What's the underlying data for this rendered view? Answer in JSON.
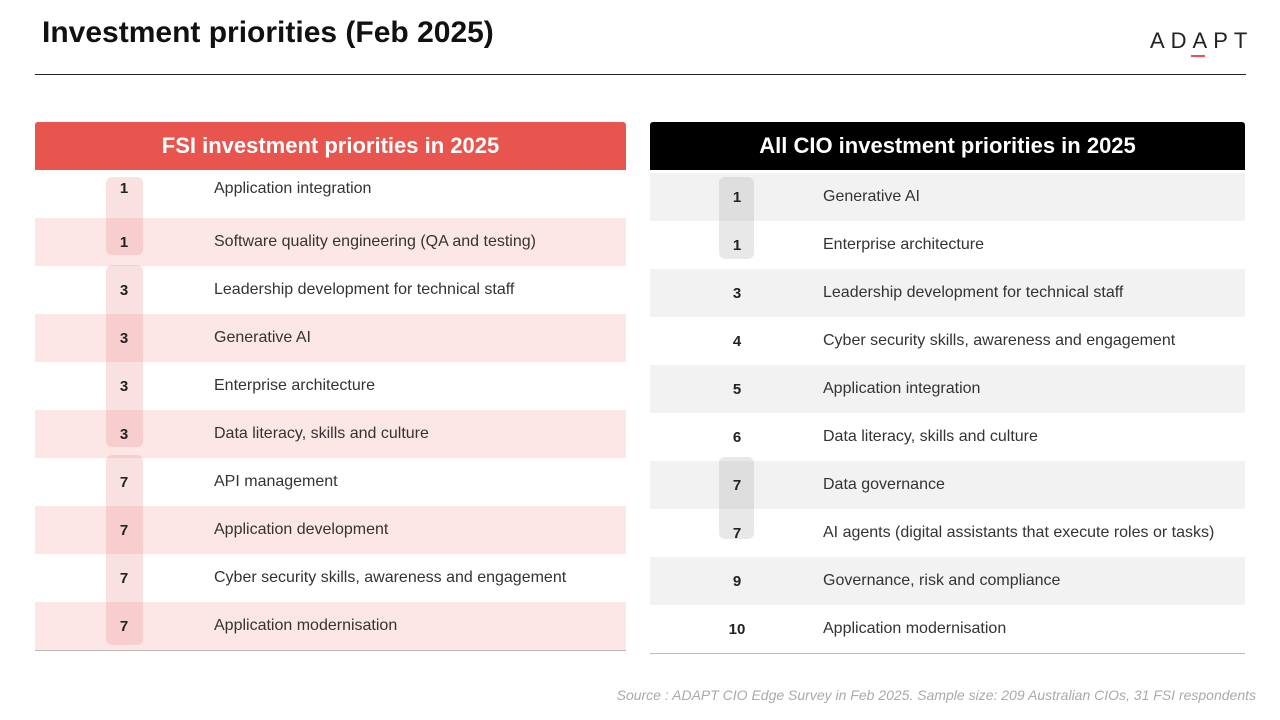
{
  "page": {
    "title": "Investment priorities (Feb 2025)",
    "logo": "ADAPT",
    "source": "Source : ADAPT CIO Edge Survey in Feb 2025. Sample size: 209 Australian CIOs, 31 FSI respondents"
  },
  "colors": {
    "fsi_header": "#e8554e",
    "cio_header": "#000000",
    "fsi_row": "#fde6e6",
    "cio_row": "#f2f2f2"
  },
  "fsi": {
    "heading": "FSI investment priorities in 2025",
    "rows": [
      {
        "rank": "1",
        "label": "Application integration"
      },
      {
        "rank": "1",
        "label": "Software quality engineering (QA and testing)"
      },
      {
        "rank": "3",
        "label": "Leadership development for technical staff"
      },
      {
        "rank": "3",
        "label": "Generative AI"
      },
      {
        "rank": "3",
        "label": "Enterprise architecture"
      },
      {
        "rank": "3",
        "label": "Data literacy, skills and culture"
      },
      {
        "rank": "7",
        "label": "API management"
      },
      {
        "rank": "7",
        "label": "Application development"
      },
      {
        "rank": "7",
        "label": "Cyber security skills, awareness and engagement"
      },
      {
        "rank": "7",
        "label": "Application modernisation"
      }
    ]
  },
  "cio": {
    "heading": "All CIO investment priorities in 2025",
    "rows": [
      {
        "rank": "1",
        "label": "Generative AI"
      },
      {
        "rank": "1",
        "label": "Enterprise architecture"
      },
      {
        "rank": "3",
        "label": "Leadership development for technical staff"
      },
      {
        "rank": "4",
        "label": "Cyber security skills, awareness and engagement"
      },
      {
        "rank": "5",
        "label": "Application integration"
      },
      {
        "rank": "6",
        "label": "Data literacy, skills and culture"
      },
      {
        "rank": "7",
        "label": "Data governance"
      },
      {
        "rank": "7",
        "label": "AI agents (digital assistants that execute roles or tasks)"
      },
      {
        "rank": "9",
        "label": "Governance, risk and compliance"
      },
      {
        "rank": "10",
        "label": "Application modernisation"
      }
    ]
  }
}
